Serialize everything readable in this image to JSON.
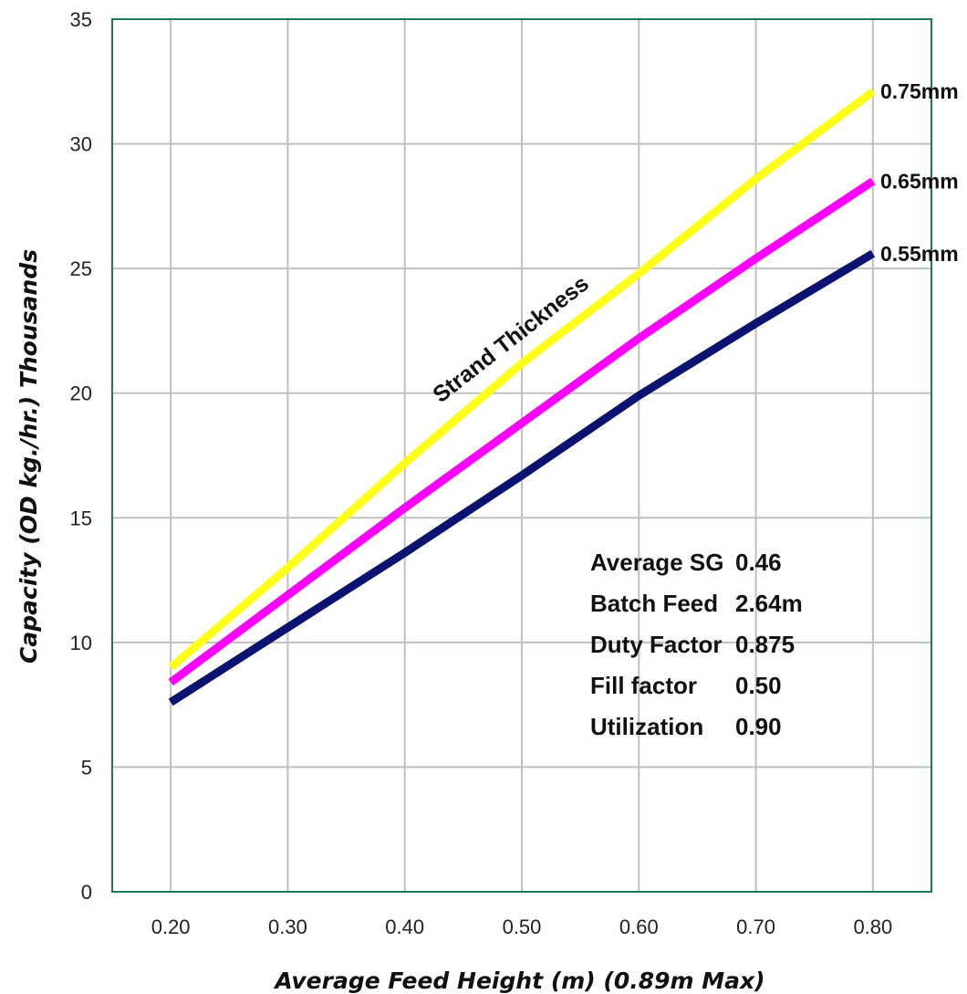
{
  "chart_data": {
    "type": "line",
    "xlabel": "Average Feed Height (m) (0.89m Max)",
    "ylabel": "Capacity (OD kg./hr.) Thousands",
    "xlim": [
      0.15,
      0.85
    ],
    "ylim": [
      0,
      35
    ],
    "x_ticks": [
      "0.20",
      "0.30",
      "0.40",
      "0.50",
      "0.60",
      "0.70",
      "0.80"
    ],
    "y_ticks": [
      "0",
      "5",
      "10",
      "15",
      "20",
      "25",
      "30",
      "35"
    ],
    "grid": true,
    "series": [
      {
        "name": "0.75mm",
        "color": "#ffff1a",
        "x": [
          0.2,
          0.3,
          0.4,
          0.5,
          0.6,
          0.7,
          0.8
        ],
        "y": [
          9.0,
          13.0,
          17.2,
          21.2,
          24.8,
          28.6,
          32.1
        ]
      },
      {
        "name": "0.65mm",
        "color": "#ff00ff",
        "x": [
          0.2,
          0.3,
          0.4,
          0.5,
          0.6,
          0.7,
          0.8
        ],
        "y": [
          8.4,
          11.9,
          15.4,
          18.8,
          22.2,
          25.4,
          28.5
        ]
      },
      {
        "name": "0.55mm",
        "color": "#0a1470",
        "x": [
          0.2,
          0.3,
          0.4,
          0.5,
          0.6,
          0.7,
          0.8
        ],
        "y": [
          7.6,
          10.6,
          13.6,
          16.7,
          19.9,
          22.8,
          25.6
        ]
      }
    ],
    "annotation": "Strand Thickness",
    "parameters": [
      {
        "label": "Average SG",
        "value": "0.46"
      },
      {
        "label": "Batch Feed",
        "value": "2.64m"
      },
      {
        "label": "Duty Factor",
        "value": "0.875"
      },
      {
        "label": "Fill factor",
        "value": "0.50"
      },
      {
        "label": "Utilization",
        "value": "0.90"
      }
    ],
    "colors": {
      "frame": "#1a7a5e",
      "grid": "#c0c0c0"
    }
  }
}
